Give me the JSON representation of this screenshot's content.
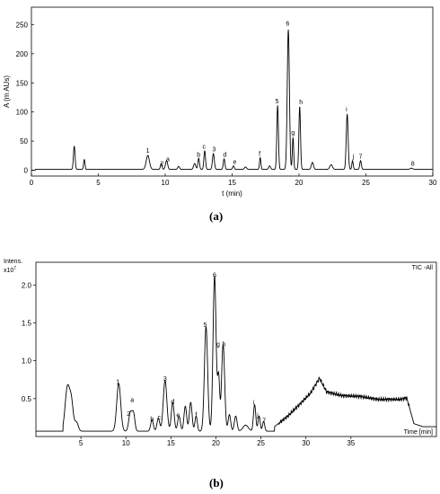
{
  "figure": {
    "label_a": "(a)",
    "label_b": "(b)"
  },
  "chart_data": [
    {
      "type": "line",
      "panel": "(a)",
      "xlabel": "t (min)",
      "ylabel": "A (m AUs)",
      "xlim": [
        0,
        30
      ],
      "ylim": [
        -10,
        280
      ],
      "xticks": [
        0,
        5,
        10,
        15,
        20,
        25,
        30
      ],
      "yticks": [
        0,
        50,
        100,
        150,
        200,
        250
      ],
      "baseline": 1.5,
      "peaks": [
        {
          "t": 3.2,
          "h": 40,
          "w": 0.06
        },
        {
          "t": 3.95,
          "h": 17,
          "w": 0.05
        },
        {
          "t": 8.7,
          "h": 24,
          "w": 0.12
        },
        {
          "t": 9.7,
          "h": 10,
          "w": 0.06
        },
        {
          "t": 10.1,
          "h": 15,
          "w": 0.08
        },
        {
          "t": 11.0,
          "h": 5,
          "w": 0.07
        },
        {
          "t": 12.2,
          "h": 10,
          "w": 0.08
        },
        {
          "t": 12.5,
          "h": 19,
          "w": 0.06
        },
        {
          "t": 12.95,
          "h": 32,
          "w": 0.06
        },
        {
          "t": 13.6,
          "h": 27,
          "w": 0.07
        },
        {
          "t": 14.4,
          "h": 18,
          "w": 0.06
        },
        {
          "t": 15.1,
          "h": 6,
          "w": 0.06
        },
        {
          "t": 16.0,
          "h": 4,
          "w": 0.08
        },
        {
          "t": 17.1,
          "h": 20,
          "w": 0.05
        },
        {
          "t": 17.8,
          "h": 6,
          "w": 0.07
        },
        {
          "t": 18.4,
          "h": 110,
          "w": 0.06
        },
        {
          "t": 19.2,
          "h": 240,
          "w": 0.08
        },
        {
          "t": 19.55,
          "h": 55,
          "w": 0.05
        },
        {
          "t": 20.05,
          "h": 108,
          "w": 0.06
        },
        {
          "t": 21.0,
          "h": 12,
          "w": 0.08
        },
        {
          "t": 22.4,
          "h": 8,
          "w": 0.1
        },
        {
          "t": 23.6,
          "h": 95,
          "w": 0.07
        },
        {
          "t": 24.0,
          "h": 15,
          "w": 0.05
        },
        {
          "t": 24.6,
          "h": 15,
          "w": 0.06
        },
        {
          "t": 28.4,
          "h": 2,
          "w": 0.1
        }
      ],
      "annotations": [
        {
          "text": "1",
          "x": 8.7,
          "y": 27
        },
        {
          "text": "2",
          "x": 9.75,
          "y": 5
        },
        {
          "text": "a",
          "x": 10.2,
          "y": 12
        },
        {
          "text": "b",
          "x": 12.5,
          "y": 20
        },
        {
          "text": "c",
          "x": 12.9,
          "y": 34
        },
        {
          "text": "3",
          "x": 13.65,
          "y": 29
        },
        {
          "text": "d",
          "x": 14.45,
          "y": 20
        },
        {
          "text": "e",
          "x": 15.2,
          "y": 8
        },
        {
          "text": "f",
          "x": 17.05,
          "y": 22
        },
        {
          "text": "5",
          "x": 18.35,
          "y": 112
        },
        {
          "text": "6",
          "x": 19.15,
          "y": 245
        },
        {
          "text": "g",
          "x": 19.55,
          "y": 58
        },
        {
          "text": "h",
          "x": 20.15,
          "y": 110
        },
        {
          "text": "i",
          "x": 23.55,
          "y": 98
        },
        {
          "text": "j",
          "x": 24.05,
          "y": 17
        },
        {
          "text": "7",
          "x": 24.6,
          "y": 17
        },
        {
          "text": "8",
          "x": 28.5,
          "y": 5
        }
      ]
    },
    {
      "type": "line",
      "panel": "(b)",
      "title_right": "TIC -All",
      "ylabel": "Intens.",
      "y_exponent_label": "x10",
      "y_exponent": "7",
      "xlabel": "Time [min]",
      "xlim": [
        0,
        44.5
      ],
      "ylim": [
        0,
        2.3
      ],
      "xticks": [
        5,
        10,
        15,
        20,
        25,
        30,
        35
      ],
      "yticks": [
        0.5,
        1.0,
        1.5,
        2.0
      ],
      "ytick_labels": [
        "0.5",
        "1.0",
        "1.5",
        "2.0"
      ],
      "baseline_start": 0.07,
      "peaks": [
        {
          "t": 3.5,
          "h": 0.58,
          "w": 0.25
        },
        {
          "t": 3.95,
          "h": 0.35,
          "w": 0.2
        },
        {
          "t": 4.5,
          "h": 0.12,
          "w": 0.2
        },
        {
          "t": 9.2,
          "h": 0.63,
          "w": 0.22
        },
        {
          "t": 10.5,
          "h": 0.25,
          "w": 0.18
        },
        {
          "t": 10.85,
          "h": 0.22,
          "w": 0.15
        },
        {
          "t": 12.9,
          "h": 0.15,
          "w": 0.15
        },
        {
          "t": 13.6,
          "h": 0.17,
          "w": 0.15
        },
        {
          "t": 14.35,
          "h": 0.67,
          "w": 0.2
        },
        {
          "t": 15.2,
          "h": 0.38,
          "w": 0.16
        },
        {
          "t": 15.9,
          "h": 0.2,
          "w": 0.15
        },
        {
          "t": 16.6,
          "h": 0.33,
          "w": 0.15
        },
        {
          "t": 17.2,
          "h": 0.38,
          "w": 0.15
        },
        {
          "t": 17.8,
          "h": 0.2,
          "w": 0.13
        },
        {
          "t": 18.9,
          "h": 1.38,
          "w": 0.18
        },
        {
          "t": 19.85,
          "h": 2.05,
          "w": 0.17
        },
        {
          "t": 20.3,
          "h": 0.7,
          "w": 0.12
        },
        {
          "t": 20.8,
          "h": 1.15,
          "w": 0.17
        },
        {
          "t": 21.5,
          "h": 0.22,
          "w": 0.14
        },
        {
          "t": 22.2,
          "h": 0.2,
          "w": 0.15
        },
        {
          "t": 23.3,
          "h": 0.08,
          "w": 0.3
        },
        {
          "t": 24.3,
          "h": 0.35,
          "w": 0.13
        },
        {
          "t": 24.8,
          "h": 0.2,
          "w": 0.12
        },
        {
          "t": 25.3,
          "h": 0.13,
          "w": 0.12
        }
      ],
      "hump": [
        {
          "t": 26.5,
          "v": 0.06
        },
        {
          "t": 28.0,
          "v": 0.2
        },
        {
          "t": 29.5,
          "v": 0.38
        },
        {
          "t": 30.5,
          "v": 0.5
        },
        {
          "t": 31.5,
          "v": 0.7
        },
        {
          "t": 32.3,
          "v": 0.52
        },
        {
          "t": 34.0,
          "v": 0.47
        },
        {
          "t": 36.0,
          "v": 0.46
        },
        {
          "t": 38.0,
          "v": 0.42
        },
        {
          "t": 40.5,
          "v": 0.42
        },
        {
          "t": 41.2,
          "v": 0.44
        },
        {
          "t": 42.0,
          "v": 0.1
        },
        {
          "t": 43.0,
          "v": 0.06
        },
        {
          "t": 44.5,
          "v": 0.06
        }
      ],
      "annotations": [
        {
          "text": "1",
          "x": 9.1,
          "y": 0.67
        },
        {
          "text": "2",
          "x": 10.3,
          "y": 0.25
        },
        {
          "text": "a",
          "x": 10.7,
          "y": 0.43
        },
        {
          "text": "b",
          "x": 12.9,
          "y": 0.18
        },
        {
          "text": "c",
          "x": 13.7,
          "y": 0.2
        },
        {
          "text": "3",
          "x": 14.35,
          "y": 0.71
        },
        {
          "text": "d",
          "x": 15.2,
          "y": 0.41
        },
        {
          "text": "e",
          "x": 15.8,
          "y": 0.23
        },
        {
          "text": "f",
          "x": 17.8,
          "y": 0.24
        },
        {
          "text": "5",
          "x": 18.8,
          "y": 1.42
        },
        {
          "text": "6",
          "x": 19.85,
          "y": 2.08
        },
        {
          "text": "g",
          "x": 20.25,
          "y": 1.17
        },
        {
          "text": "h",
          "x": 20.9,
          "y": 1.17
        },
        {
          "text": "i",
          "x": 24.2,
          "y": 0.4
        },
        {
          "text": "j",
          "x": 24.65,
          "y": 0.23
        },
        {
          "text": "7",
          "x": 25.35,
          "y": 0.16
        }
      ]
    }
  ]
}
